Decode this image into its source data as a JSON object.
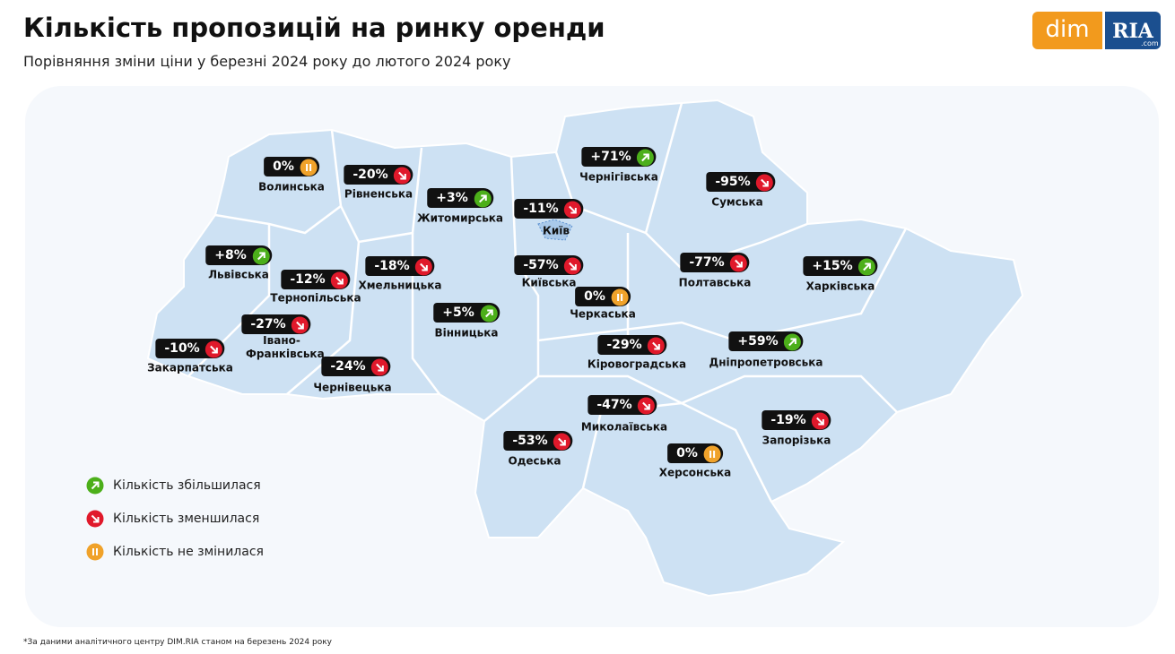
{
  "header": {
    "title": "Кількість пропозицій на ринку оренди",
    "subtitle": "Порівняння зміни ціни у березні 2024 року до лютого 2024 року"
  },
  "logo": {
    "left": "dim",
    "right": "RIA",
    "right_small": ".com"
  },
  "regions": [
    {
      "name": "Волинська",
      "change": "0%"
    },
    {
      "name": "Рівненська",
      "change": "-20%"
    },
    {
      "name": "Житомирська",
      "change": "+3%"
    },
    {
      "name": "Київ",
      "change": "-11%"
    },
    {
      "name": "Чернігівська",
      "change": "+71%"
    },
    {
      "name": "Сумська",
      "change": "-95%"
    },
    {
      "name": "Львівська",
      "change": "+8%"
    },
    {
      "name": "Тернопільська",
      "change": "-12%"
    },
    {
      "name": "Хмельницька",
      "change": "-18%"
    },
    {
      "name": "Київська",
      "change": "-57%"
    },
    {
      "name": "Полтавська",
      "change": "-77%"
    },
    {
      "name": "Харківська",
      "change": "+15%"
    },
    {
      "name": "Черкаська",
      "change": "0%"
    },
    {
      "name": "Вінницька",
      "change": "+5%"
    },
    {
      "name": "Івано-Франківська",
      "change": "-27%"
    },
    {
      "name": "Закарпатська",
      "change": "-10%"
    },
    {
      "name": "Чернівецька",
      "change": "-24%"
    },
    {
      "name": "Кіровоградська",
      "change": "-29%"
    },
    {
      "name": "Дніпропетровська",
      "change": "+59%"
    },
    {
      "name": "Миколаївська",
      "change": "-47%"
    },
    {
      "name": "Запорізька",
      "change": "-19%"
    },
    {
      "name": "Одеська",
      "change": "-53%"
    },
    {
      "name": "Херсонська",
      "change": "0%"
    }
  ],
  "legend": [
    {
      "label": "Кількість збільшилася",
      "color": "#4caf1a"
    },
    {
      "label": "Кількість зменшилася",
      "color": "#e0192b"
    },
    {
      "label": "Кількість не змінилася",
      "color": "#f0a22a"
    }
  ],
  "footnote": "*За даними аналітичного центру DIM.RIA станом на березень 2024 року"
}
